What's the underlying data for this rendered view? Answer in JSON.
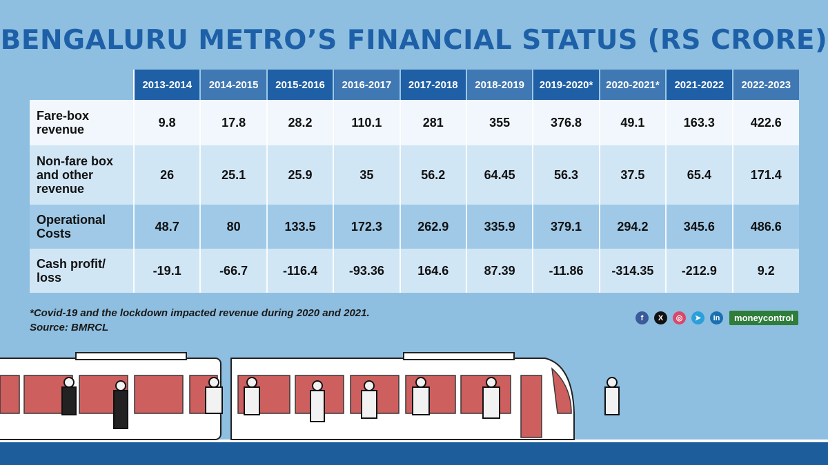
{
  "title": "BENGALURU METRO’S FINANCIAL STATUS (RS CRORE)",
  "chart_data": {
    "type": "table",
    "title": "BENGALURU METRO’S FINANCIAL STATUS (RS CRORE)",
    "columns": [
      "2013-2014",
      "2014-2015",
      "2015-2016",
      "2016-2017",
      "2017-2018",
      "2018-2019",
      "2019-2020*",
      "2020-2021*",
      "2021-2022",
      "2022-2023"
    ],
    "rows": [
      {
        "label_lines": [
          "Fare-box",
          "revenue"
        ],
        "values": [
          "9.8",
          "17.8",
          "28.2",
          "110.1",
          "281",
          "355",
          "376.8",
          "49.1",
          "163.3",
          "422.6"
        ]
      },
      {
        "label_lines": [
          "Non-fare box",
          "and other",
          "revenue"
        ],
        "values": [
          "26",
          "25.1",
          "25.9",
          "35",
          "56.2",
          "64.45",
          "56.3",
          "37.5",
          "65.4",
          "171.4"
        ]
      },
      {
        "label_lines": [
          "Operational",
          "Costs"
        ],
        "values": [
          "48.7",
          "80",
          "133.5",
          "172.3",
          "262.9",
          "335.9",
          "379.1",
          "294.2",
          "345.6",
          "486.6"
        ]
      },
      {
        "label_lines": [
          "Cash profit/",
          "loss"
        ],
        "values": [
          "-19.1",
          "-66.7",
          "-116.4",
          "-93.36",
          "164.6",
          "87.39",
          "-11.86",
          "-314.35",
          "-212.9",
          "9.2"
        ]
      }
    ]
  },
  "footnote": "*Covid-19 and the lockdown impacted revenue during 2020 and 2021.",
  "source": "Source: BMRCL",
  "social": [
    {
      "name": "facebook-icon",
      "glyph": "f",
      "color": "#3b5a9a"
    },
    {
      "name": "x-icon",
      "glyph": "X",
      "color": "#111111"
    },
    {
      "name": "instagram-icon",
      "glyph": "◎",
      "color": "#d8486b"
    },
    {
      "name": "telegram-icon",
      "glyph": "➤",
      "color": "#2b9fd9"
    },
    {
      "name": "linkedin-icon",
      "glyph": "in",
      "color": "#1a6fb0"
    }
  ],
  "brand": "moneycontrol",
  "colors": {
    "title": "#1e60a8",
    "header_dark": "#1e5fa5",
    "header_light": "#3f78b2",
    "background": "#8ebfe0",
    "brand": "#2f7d3a"
  }
}
